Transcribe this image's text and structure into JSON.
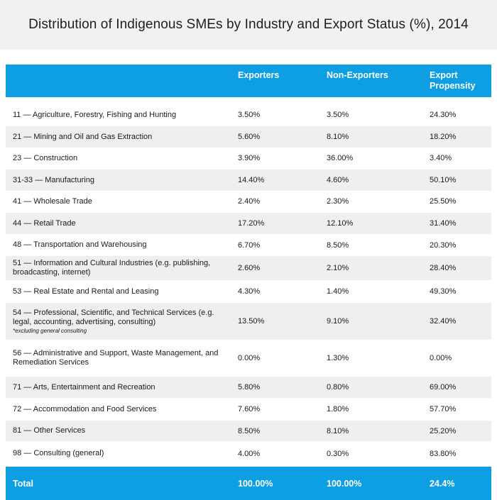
{
  "title": "Distribution of Indigenous SMEs by Industry and Export Status (%), 2014",
  "header": {
    "industry": "",
    "exporters": "Exporters",
    "non_exporters": "Non-Exporters",
    "export_propensity": "Export Propensity"
  },
  "rows": [
    {
      "label": "11 — Agriculture, Forestry, Fishing and Hunting",
      "exporters": "3.50%",
      "non_exporters": "3.50%",
      "propensity": "24.30%"
    },
    {
      "label": "21 — Mining and Oil and Gas Extraction",
      "exporters": "5.60%",
      "non_exporters": "8.10%",
      "propensity": "18.20%"
    },
    {
      "label": "23 — Construction",
      "exporters": "3.90%",
      "non_exporters": "36.00%",
      "propensity": "3.40%"
    },
    {
      "label": "31-33 — Manufacturing",
      "exporters": "14.40%",
      "non_exporters": "4.60%",
      "propensity": "50.10%"
    },
    {
      "label": "41 — Wholesale Trade",
      "exporters": "2.40%",
      "non_exporters": "2.30%",
      "propensity": "25.50%"
    },
    {
      "label": "44 — Retail Trade",
      "exporters": "17.20%",
      "non_exporters": "12.10%",
      "propensity": "31.40%"
    },
    {
      "label": "48 — Transportation and Warehousing",
      "exporters": "6.70%",
      "non_exporters": "8.50%",
      "propensity": "20.30%"
    },
    {
      "label": "51 — Information and Cultural Industries (e.g. publishing, broadcasting, internet)",
      "exporters": "2.60%",
      "non_exporters": "2.10%",
      "propensity": "28.40%"
    },
    {
      "label": "53 — Real Estate and Rental and Leasing",
      "exporters": "4.30%",
      "non_exporters": "1.40%",
      "propensity": "49.30%"
    },
    {
      "label": "54 — Professional, Scientific, and Technical Services (e.g. legal, accounting, advertising, consulting)",
      "note": "*excluding general consulting",
      "exporters": "13.50%",
      "non_exporters": "9.10%",
      "propensity": "32.40%"
    },
    {
      "label": "56 — Administrative and Support, Waste Management, and Remediation Services",
      "exporters": "0.00%",
      "non_exporters": "1.30%",
      "propensity": "0.00%"
    },
    {
      "label": "71 — Arts, Entertainment and Recreation",
      "exporters": "5.80%",
      "non_exporters": "0.80%",
      "propensity": "69.00%"
    },
    {
      "label": "72 — Accommodation and Food Services",
      "exporters": "7.60%",
      "non_exporters": "1.80%",
      "propensity": "57.70%"
    },
    {
      "label": "81 — Other Services",
      "exporters": "8.50%",
      "non_exporters": "8.10%",
      "propensity": "25.20%"
    },
    {
      "label": "98 — Consulting (general)",
      "exporters": "4.00%",
      "non_exporters": "0.30%",
      "propensity": "83.80%"
    }
  ],
  "total": {
    "label": "Total",
    "exporters": "100.00%",
    "non_exporters": "100.00%",
    "propensity": "24.4%"
  },
  "colors": {
    "header_bg": "#0d9ee3",
    "stripe_bg": "#efefef",
    "title_bg": "#f1f1f1"
  }
}
